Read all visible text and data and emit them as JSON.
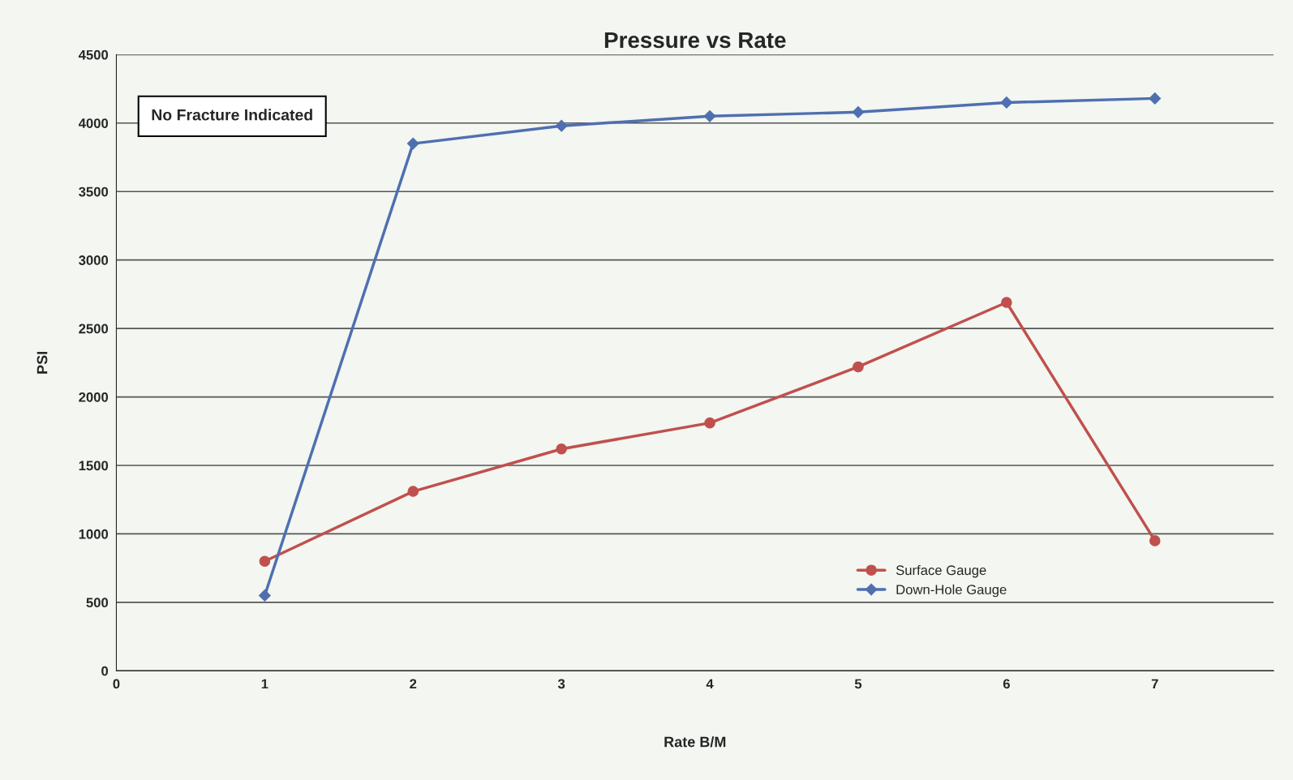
{
  "chart_data": {
    "type": "line",
    "title": "Pressure vs Rate",
    "xlabel": "Rate B/M",
    "ylabel": "PSI",
    "x": [
      1,
      2,
      3,
      4,
      5,
      6,
      7
    ],
    "series": [
      {
        "name": "Surface Gauge",
        "color": "#c0504d",
        "marker": "circle",
        "values": [
          800,
          1310,
          1620,
          1810,
          2220,
          2690,
          950
        ]
      },
      {
        "name": "Down-Hole Gauge",
        "color": "#4f6fb0",
        "marker": "diamond",
        "values": [
          550,
          3850,
          3980,
          4050,
          4080,
          4150,
          4180
        ]
      }
    ],
    "xlim": [
      0,
      7.8
    ],
    "xticks": [
      0,
      1,
      2,
      3,
      4,
      5,
      6,
      7
    ],
    "ylim": [
      0,
      4500
    ],
    "yticks": [
      0,
      500,
      1000,
      1500,
      2000,
      2500,
      3000,
      3500,
      4000,
      4500
    ],
    "grid": "y",
    "legend": "bottom right",
    "line_style": "solid",
    "annotations": [
      "No Fracture Indicated"
    ]
  }
}
